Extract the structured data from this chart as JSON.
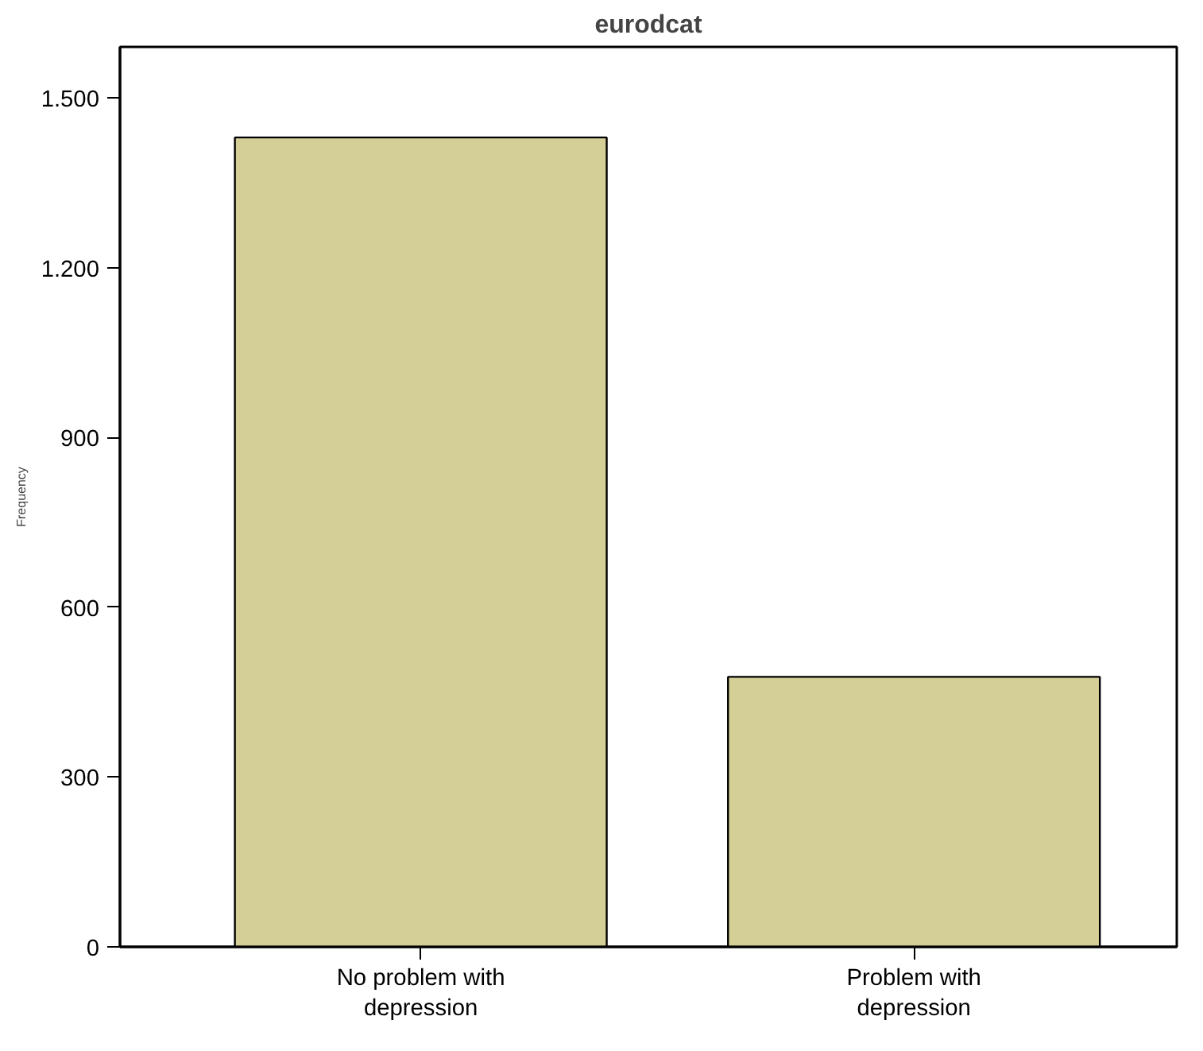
{
  "chart_data": {
    "type": "bar",
    "title": "eurodcat",
    "ylabel": "Frequency",
    "categories": [
      "No problem with depression",
      "Problem with depression"
    ],
    "values": [
      1430,
      477
    ],
    "color": "#d3cf96",
    "ylim": [
      0,
      1590
    ],
    "yticks": [
      0,
      300,
      600,
      900,
      {
        "value": 1200,
        "label": "1.200"
      },
      {
        "value": 1500,
        "label": "1.500"
      }
    ],
    "grid": false
  }
}
